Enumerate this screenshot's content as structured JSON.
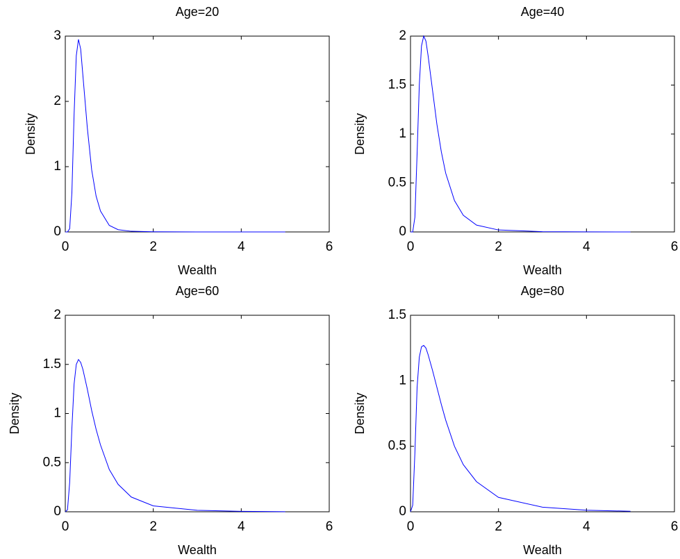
{
  "chart_data": [
    {
      "type": "line",
      "title": "Age=20",
      "x_label": "Wealth",
      "y_label": "Density",
      "color": "#0000ff",
      "x": [
        0,
        0.05,
        0.1,
        0.15,
        0.2,
        0.25,
        0.3,
        0.35,
        0.4,
        0.5,
        0.6,
        0.7,
        0.8,
        1.0,
        1.2,
        1.5,
        2,
        3,
        4,
        5
      ],
      "values": [
        0,
        0,
        0.05,
        0.6,
        1.8,
        2.7,
        2.95,
        2.8,
        2.4,
        1.6,
        0.95,
        0.55,
        0.32,
        0.1,
        0.035,
        0.01,
        0.002,
        0,
        0,
        0
      ],
      "xlim": [
        0,
        6
      ],
      "xticks": [
        0,
        2,
        4,
        6
      ],
      "ylim": [
        0,
        3
      ],
      "yticks": [
        0,
        1,
        2,
        3
      ]
    },
    {
      "type": "line",
      "title": "Age=40",
      "x_label": "Wealth",
      "y_label": "Density",
      "color": "#0000ff",
      "x": [
        0,
        0.05,
        0.1,
        0.15,
        0.2,
        0.25,
        0.3,
        0.35,
        0.4,
        0.5,
        0.6,
        0.7,
        0.8,
        1.0,
        1.2,
        1.5,
        2,
        3,
        4,
        5
      ],
      "values": [
        0,
        0,
        0.15,
        0.8,
        1.5,
        1.9,
        2.0,
        1.95,
        1.8,
        1.45,
        1.1,
        0.82,
        0.6,
        0.32,
        0.17,
        0.07,
        0.02,
        0.003,
        0.001,
        0
      ],
      "xlim": [
        0,
        6
      ],
      "xticks": [
        0,
        2,
        4,
        6
      ],
      "ylim": [
        0,
        2
      ],
      "yticks": [
        0,
        0.5,
        1,
        1.5,
        2
      ]
    },
    {
      "type": "line",
      "title": "Age=60",
      "x_label": "Wealth",
      "y_label": "Density",
      "color": "#0000ff",
      "x": [
        0,
        0.05,
        0.1,
        0.15,
        0.2,
        0.25,
        0.3,
        0.35,
        0.4,
        0.5,
        0.6,
        0.7,
        0.8,
        1.0,
        1.2,
        1.5,
        2,
        3,
        4,
        5
      ],
      "values": [
        0,
        0.02,
        0.3,
        0.85,
        1.3,
        1.5,
        1.55,
        1.52,
        1.45,
        1.25,
        1.03,
        0.84,
        0.68,
        0.43,
        0.28,
        0.15,
        0.06,
        0.015,
        0.004,
        0.001
      ],
      "xlim": [
        0,
        6
      ],
      "xticks": [
        0,
        2,
        4,
        6
      ],
      "ylim": [
        0,
        2
      ],
      "yticks": [
        0,
        0.5,
        1,
        1.5,
        2
      ]
    },
    {
      "type": "line",
      "title": "Age=80",
      "x_label": "Wealth",
      "y_label": "Density",
      "color": "#0000ff",
      "x": [
        0,
        0.05,
        0.1,
        0.15,
        0.2,
        0.25,
        0.3,
        0.35,
        0.4,
        0.5,
        0.6,
        0.7,
        0.8,
        1.0,
        1.2,
        1.5,
        2,
        3,
        4,
        5
      ],
      "values": [
        0,
        0.05,
        0.45,
        0.95,
        1.18,
        1.26,
        1.27,
        1.25,
        1.2,
        1.08,
        0.95,
        0.82,
        0.7,
        0.5,
        0.36,
        0.23,
        0.11,
        0.035,
        0.012,
        0.004
      ],
      "xlim": [
        0,
        6
      ],
      "xticks": [
        0,
        2,
        4,
        6
      ],
      "ylim": [
        0,
        1.5
      ],
      "yticks": [
        0,
        0.5,
        1,
        1.5
      ]
    }
  ]
}
